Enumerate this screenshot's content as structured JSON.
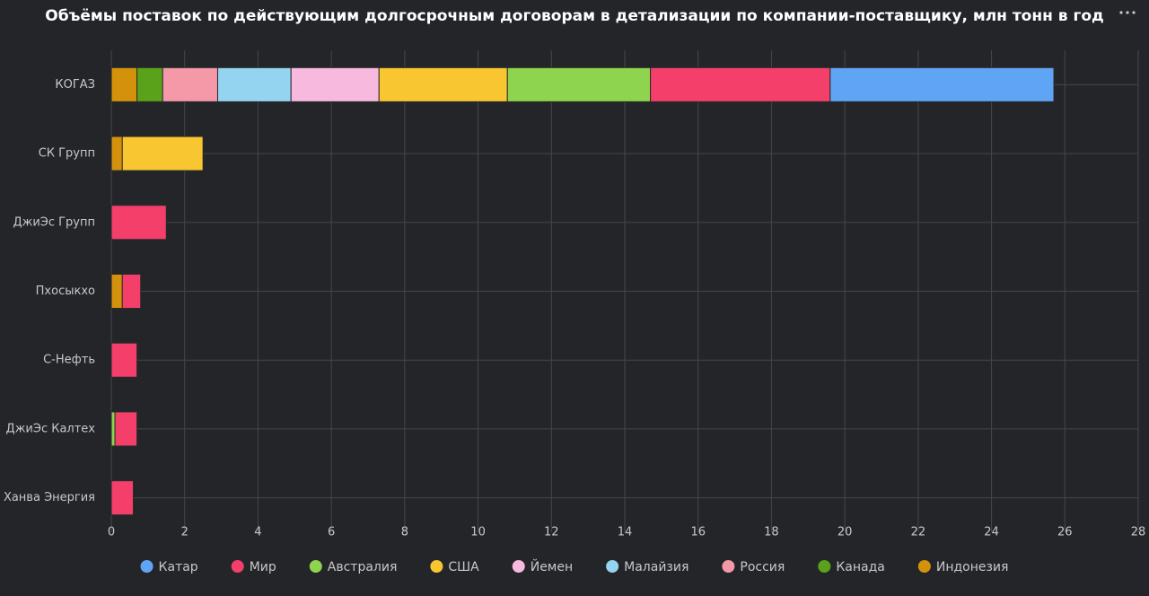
{
  "chart_data": {
    "type": "stacked-bar-horizontal",
    "title": "Объёмы поставок по действующим долгосрочным договорам в детализации по компании-поставщику, млн тонн в год",
    "categories": [
      "КОГАЗ",
      "СК Групп",
      "ДжиЭс Групп",
      "Пхосыкхо",
      "С-Нефть",
      "ДжиЭс Калтех",
      "Ханва Энергия"
    ],
    "series": [
      {
        "name": "Катар",
        "color": "#60a5f5",
        "values": [
          6.1,
          null,
          null,
          null,
          null,
          null,
          null
        ]
      },
      {
        "name": "Мир",
        "color": "#f43f6b",
        "values": [
          4.9,
          null,
          1.5,
          0.5,
          0.7,
          0.6,
          0.6
        ]
      },
      {
        "name": "Австралия",
        "color": "#8fd44f",
        "values": [
          3.9,
          null,
          null,
          null,
          null,
          0.1,
          null
        ]
      },
      {
        "name": "США",
        "color": "#f8c630",
        "values": [
          3.5,
          2.2,
          null,
          null,
          null,
          null,
          null
        ]
      },
      {
        "name": "Йемен",
        "color": "#f7b9de",
        "values": [
          2.4,
          null,
          null,
          null,
          null,
          null,
          null
        ]
      },
      {
        "name": "Малайзия",
        "color": "#95d4f0",
        "values": [
          2.0,
          null,
          null,
          null,
          null,
          null,
          null
        ]
      },
      {
        "name": "Россия",
        "color": "#f598a8",
        "values": [
          1.5,
          null,
          null,
          null,
          null,
          null,
          null
        ]
      },
      {
        "name": "Канада",
        "color": "#5aa21a",
        "values": [
          0.7,
          null,
          null,
          null,
          null,
          null,
          null
        ]
      },
      {
        "name": "Индонезия",
        "color": "#d4920c",
        "values": [
          0.7,
          0.3,
          null,
          0.3,
          null,
          null,
          null
        ]
      }
    ],
    "xlim": [
      0,
      28
    ],
    "xticks": [
      0,
      2,
      4,
      6,
      8,
      10,
      12,
      14,
      16,
      18,
      20,
      22,
      24,
      26,
      28
    ],
    "grid": true,
    "legend": "bottom"
  }
}
